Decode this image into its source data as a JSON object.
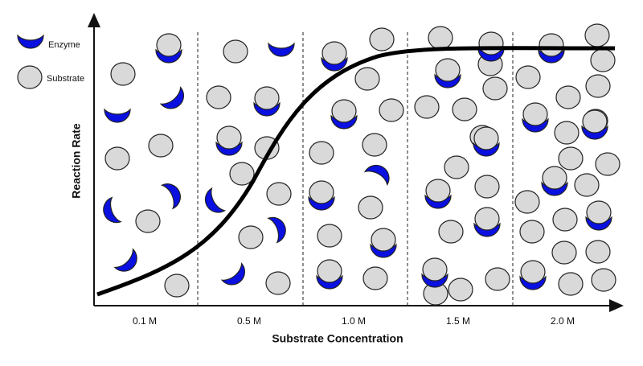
{
  "legend": {
    "enzyme": "Enzyme",
    "substrate": "Substrate"
  },
  "axes": {
    "y_label": "Reaction Rate",
    "x_label": "Substrate Concentration"
  },
  "regions": [
    "0.1 M",
    "0.5 M",
    "1.0 M",
    "1.5 M",
    "2.0 M"
  ]
}
